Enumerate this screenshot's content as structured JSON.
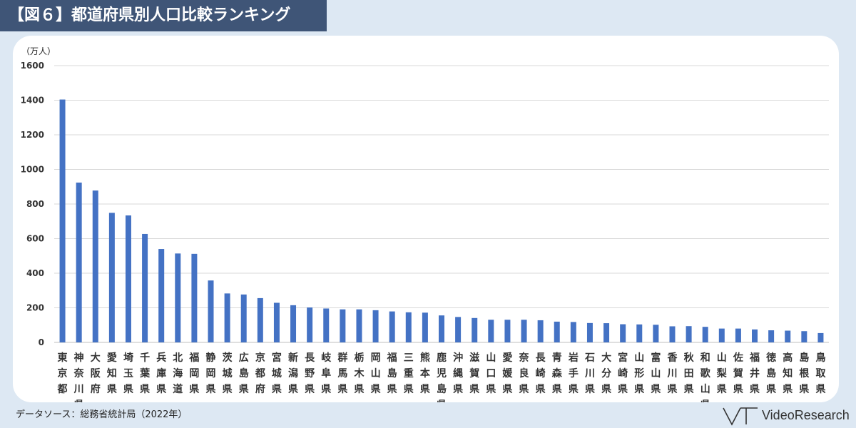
{
  "header": {
    "title": "【図６】都道府県別人口比較ランキング"
  },
  "source": "データソース：総務省統計局（2022年）",
  "brand": {
    "name": "VideoResearch",
    "logo_icon": "vr-logo-icon"
  },
  "colors": {
    "bar": "#4472c4",
    "banner": "#3f5577",
    "background": "#dde8f3",
    "grid": "#d9d9d9"
  },
  "chart_data": {
    "type": "bar",
    "unit_label": "（万人）",
    "ylim": [
      0,
      1600
    ],
    "yticks": [
      "0",
      "200",
      "400",
      "600",
      "800",
      "1000",
      "1200",
      "1400",
      "1600"
    ],
    "grid": true,
    "categories": [
      "東京都",
      "神奈川県",
      "大阪府",
      "愛知県",
      "埼玉県",
      "千葉県",
      "兵庫県",
      "北海道",
      "福岡県",
      "静岡県",
      "茨城県",
      "広島県",
      "京都府",
      "宮城県",
      "新潟県",
      "長野県",
      "岐阜県",
      "群馬県",
      "栃木県",
      "岡山県",
      "福島県",
      "三重県",
      "熊本県",
      "鹿児島県",
      "沖縄県",
      "滋賀県",
      "山口県",
      "愛媛県",
      "奈良県",
      "長崎県",
      "青森県",
      "岩手県",
      "石川県",
      "大分県",
      "宮崎県",
      "山形県",
      "富山県",
      "香川県",
      "秋田県",
      "和歌山県",
      "山梨県",
      "佐賀県",
      "福井県",
      "徳島県",
      "高知県",
      "島根県",
      "鳥取県"
    ],
    "values": [
      1404,
      924,
      878,
      749,
      734,
      627,
      540,
      514,
      512,
      358,
      283,
      277,
      256,
      229,
      215,
      202,
      196,
      191,
      191,
      186,
      179,
      174,
      172,
      156,
      147,
      141,
      131,
      131,
      131,
      128,
      120,
      118,
      112,
      111,
      105,
      104,
      102,
      93,
      94,
      90,
      80,
      80,
      75,
      70,
      68,
      65,
      54
    ]
  }
}
